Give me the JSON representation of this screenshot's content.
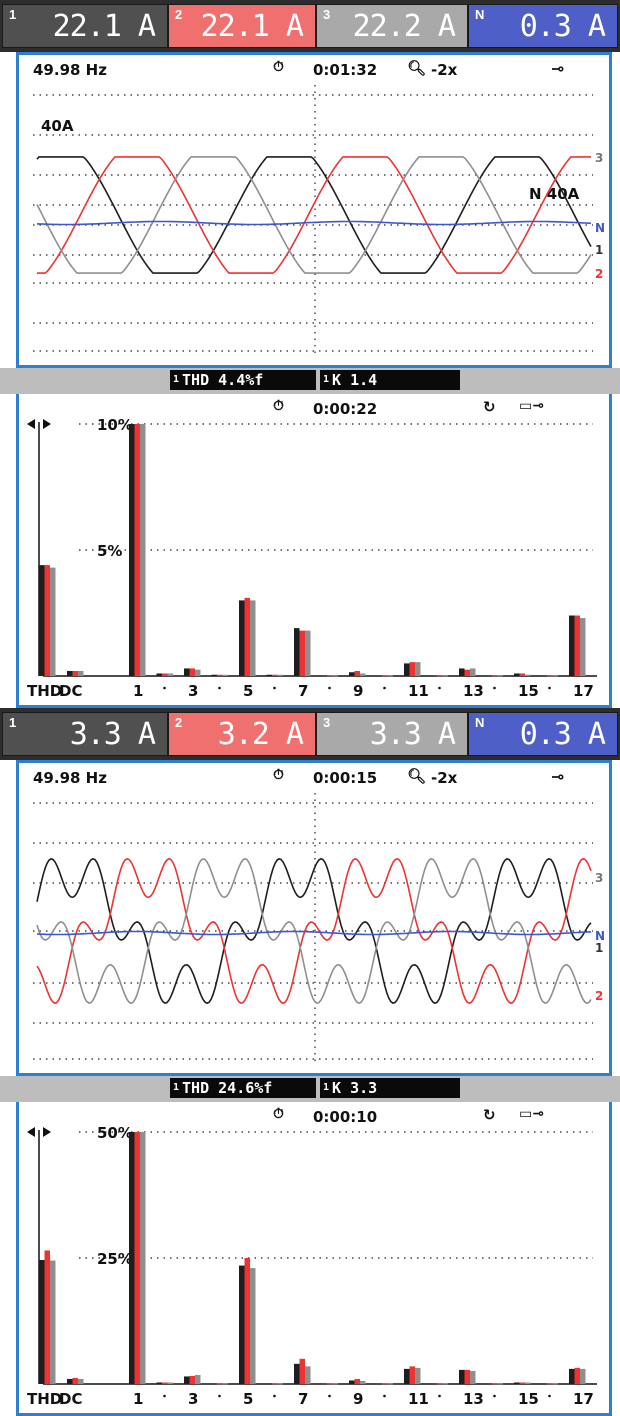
{
  "colors": {
    "ch1": "#1e1e1e",
    "ch2": "#ee3333",
    "ch3": "#8f8f8f",
    "neutral": "#3f57c8",
    "frame": "#2f7fd0"
  },
  "screens": [
    {
      "channels": [
        {
          "id": "1",
          "value": "22.1 A",
          "bg": "#505050"
        },
        {
          "id": "2",
          "value": "22.1 A",
          "bg": "#f07070"
        },
        {
          "id": "3",
          "value": "22.2 A",
          "bg": "#a9a9a9"
        },
        {
          "id": "N",
          "value": "0.3 A",
          "bg": "#4f5fc8"
        }
      ],
      "scope": {
        "frequency": "49.98 Hz",
        "timer": "0:01:32",
        "zoom": "-2x",
        "scale_label": "40A",
        "n_scale": "N  40A",
        "trace_labels": [
          "3",
          "N",
          "1",
          "2"
        ]
      },
      "strip": {
        "thd_ch": "1",
        "thd": "THD  4.4%f",
        "k_ch": "1",
        "k": "K      1.4"
      },
      "harmonics": {
        "timer": "0:00:22",
        "top_label": "10%",
        "mid_label": "5%"
      }
    },
    {
      "channels": [
        {
          "id": "1",
          "value": "3.3 A",
          "bg": "#505050"
        },
        {
          "id": "2",
          "value": "3.2 A",
          "bg": "#f07070"
        },
        {
          "id": "3",
          "value": "3.3 A",
          "bg": "#a9a9a9"
        },
        {
          "id": "N",
          "value": "0.3 A",
          "bg": "#4f5fc8"
        }
      ],
      "scope": {
        "frequency": "49.98 Hz",
        "timer": "0:00:15",
        "zoom": "-2x",
        "trace_labels": [
          "3",
          "N",
          "1",
          "2"
        ]
      },
      "strip": {
        "thd_ch": "1",
        "thd": "THD 24.6%f",
        "k_ch": "1",
        "k": "K      3.3"
      },
      "harmonics": {
        "timer": "0:00:10",
        "top_label": "50%",
        "mid_label": "25%"
      }
    }
  ],
  "chart_data": [
    {
      "type": "bar",
      "title": "",
      "categories": [
        "THD",
        "DC",
        "1",
        "2",
        "3",
        "4",
        "5",
        "6",
        "7",
        "8",
        "9",
        "10",
        "11",
        "12",
        "13",
        "14",
        "15",
        "16",
        "17"
      ],
      "tick_labels": [
        "THD",
        "DC",
        "1",
        "3",
        "5",
        "7",
        "9",
        "11",
        "13",
        "15",
        "17"
      ],
      "ylim": [
        0,
        10
      ],
      "y_unit": "%",
      "series": [
        {
          "values": [
            4.4,
            0.2,
            10,
            0.1,
            0.3,
            0.05,
            3.0,
            0.05,
            1.9,
            0.02,
            0.15,
            0.02,
            0.5,
            0.02,
            0.3,
            0.02,
            0.1,
            0.02,
            2.4
          ]
        },
        {
          "values": [
            4.4,
            0.2,
            10,
            0.1,
            0.3,
            0.05,
            3.1,
            0.05,
            1.8,
            0.02,
            0.2,
            0.02,
            0.55,
            0.02,
            0.25,
            0.02,
            0.1,
            0.02,
            2.4
          ]
        },
        {
          "values": [
            4.3,
            0.2,
            10,
            0.1,
            0.25,
            0.05,
            3.0,
            0.05,
            1.8,
            0.02,
            0.1,
            0.02,
            0.55,
            0.02,
            0.3,
            0.02,
            0.05,
            0.02,
            2.3
          ]
        }
      ]
    },
    {
      "type": "bar",
      "title": "",
      "categories": [
        "THD",
        "DC",
        "1",
        "2",
        "3",
        "4",
        "5",
        "6",
        "7",
        "8",
        "9",
        "10",
        "11",
        "12",
        "13",
        "14",
        "15",
        "16",
        "17"
      ],
      "tick_labels": [
        "THD",
        "DC",
        "1",
        "3",
        "5",
        "7",
        "9",
        "11",
        "13",
        "15",
        "17"
      ],
      "ylim": [
        0,
        50
      ],
      "y_unit": "%",
      "series": [
        {
          "values": [
            24.6,
            1.0,
            50,
            0.3,
            1.5,
            0.1,
            23.5,
            0.1,
            4.0,
            0.1,
            0.7,
            0.1,
            3.0,
            0.1,
            2.8,
            0.1,
            0.3,
            0.1,
            3.0
          ]
        },
        {
          "values": [
            26.5,
            1.2,
            50,
            0.3,
            1.6,
            0.1,
            25.0,
            0.1,
            5.0,
            0.1,
            1.0,
            0.1,
            3.5,
            0.1,
            2.8,
            0.1,
            0.3,
            0.1,
            3.2
          ]
        },
        {
          "values": [
            24.5,
            1.0,
            50,
            0.3,
            1.8,
            0.1,
            23.0,
            0.1,
            3.5,
            0.1,
            0.6,
            0.1,
            3.2,
            0.1,
            2.6,
            0.1,
            0.3,
            0.1,
            3.0
          ]
        }
      ]
    }
  ]
}
